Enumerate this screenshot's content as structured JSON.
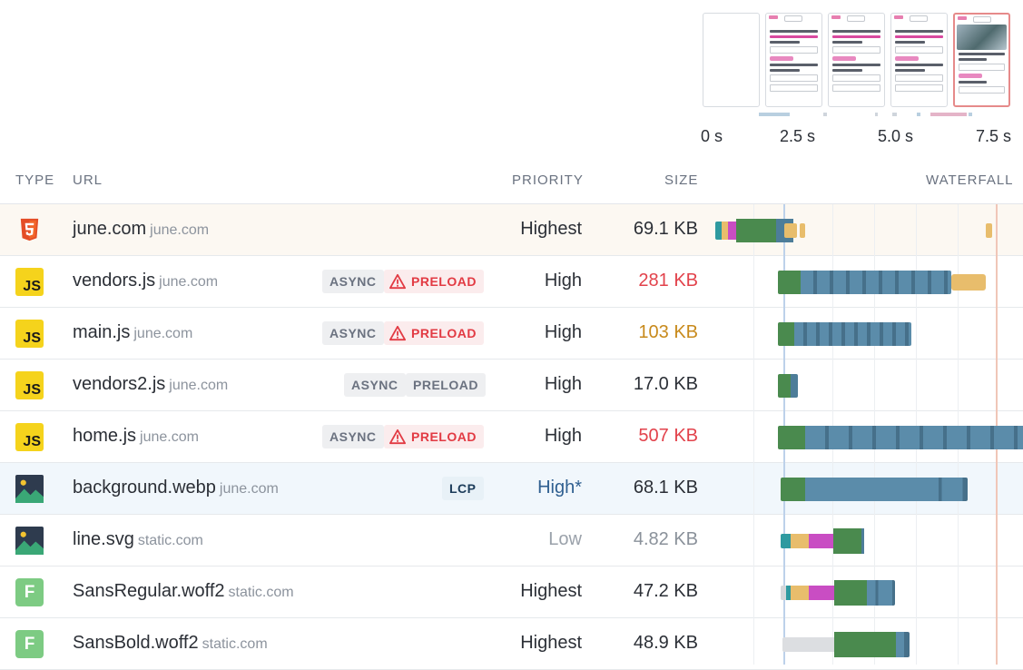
{
  "filmstrip": {
    "time_labels": [
      "0 s",
      "2.5 s",
      "5.0 s",
      "7.5 s"
    ]
  },
  "columns": {
    "type": "TYPE",
    "url": "URL",
    "priority": "PRIORITY",
    "size": "SIZE",
    "waterfall": "WATERFALL"
  },
  "requests": [
    {
      "name": "june.com",
      "host": "june.com",
      "type": "html-icon",
      "tags": [],
      "priority": "Highest",
      "size": "69.1 KB"
    },
    {
      "name": "vendors.js",
      "host": "june.com",
      "type": "js-icon",
      "tags": [
        "ASYNC",
        "PRELOAD"
      ],
      "priority": "High",
      "size": "281 KB"
    },
    {
      "name": "main.js",
      "host": "june.com",
      "type": "js-icon",
      "tags": [
        "ASYNC",
        "PRELOAD"
      ],
      "priority": "High",
      "size": "103 KB"
    },
    {
      "name": "vendors2.js",
      "host": "june.com",
      "type": "js-icon",
      "tags": [
        "ASYNC",
        "PRELOAD"
      ],
      "priority": "High",
      "size": "17.0 KB"
    },
    {
      "name": "home.js",
      "host": "june.com",
      "type": "js-icon",
      "tags": [
        "ASYNC",
        "PRELOAD"
      ],
      "priority": "High",
      "size": "507 KB"
    },
    {
      "name": "background.webp",
      "host": "june.com",
      "type": "image-icon",
      "tags": [
        "LCP"
      ],
      "priority": "High*",
      "size": "68.1 KB"
    },
    {
      "name": "line.svg",
      "host": "static.com",
      "type": "image-icon",
      "tags": [],
      "priority": "Low",
      "size": "4.82 KB"
    },
    {
      "name": "SansRegular.woff2",
      "host": "static.com",
      "type": "font-icon",
      "tags": [],
      "priority": "Highest",
      "size": "47.2 KB"
    },
    {
      "name": "SansBold.woff2",
      "host": "static.com",
      "type": "font-icon",
      "tags": [],
      "priority": "Highest",
      "size": "48.9 KB"
    }
  ],
  "icons": {
    "js_label": "JS",
    "font_label": "F"
  },
  "colors": {
    "warning": "#e23a43",
    "size_red": "#e2424b",
    "size_amber": "#c88a1c",
    "priority_star": "#2f5f90",
    "wait": "#4a8a4e",
    "download": "#5b8caa",
    "dns": "#e8bd6c",
    "ssl": "#c94dc3",
    "connect": "#2e9aa0"
  }
}
